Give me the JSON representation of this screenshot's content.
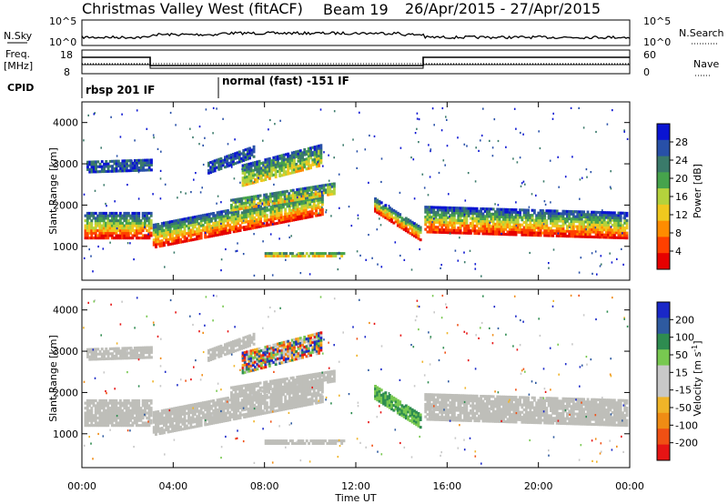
{
  "header": {
    "title_station": "Christmas Valley West (fitACF)",
    "title_beam": "Beam 19",
    "title_dates": "26/Apr/2015 - 27/Apr/2015"
  },
  "top_panels": {
    "nsky_label": "N.Sky",
    "nsky_ticks": [
      "10^5",
      "10^0"
    ],
    "nsearch_label": "N.Search",
    "nsearch_ticks": [
      "10^5",
      "10^0"
    ],
    "freq_label_1": "Freq.",
    "freq_label_2": "[MHz]",
    "freq_ticks": [
      "18",
      "8"
    ],
    "nave_label": "Nave",
    "nave_ticks": [
      "60",
      "0"
    ],
    "cpid_label": "CPID",
    "modes": [
      "rbsp 201 IF",
      "normal (fast) -151 IF"
    ]
  },
  "colors": {
    "power_scale": [
      "#0a14d2",
      "#2850a8",
      "#3a7a6a",
      "#46a34c",
      "#b4d23c",
      "#f0c81e",
      "#ff8c00",
      "#ff4000",
      "#e60000"
    ],
    "velocity_scale": [
      "#1a28c8",
      "#2e5aa0",
      "#2e8c50",
      "#78c850",
      "#c8c8c8",
      "#c8c8c8",
      "#f0b428",
      "#f08c14",
      "#f05014",
      "#e61414"
    ],
    "ground_scatter": "#bebeb9"
  },
  "chart_data": [
    {
      "type": "heatmap",
      "name": "power",
      "ylabel": "Slant Range [km]",
      "xlabel": "Time UT",
      "x_ticks": [
        "00:00",
        "04:00",
        "08:00",
        "12:00",
        "16:00",
        "20:00",
        "00:00"
      ],
      "y_ticks": [
        "1000",
        "2000",
        "3000",
        "4000"
      ],
      "ylim": [
        180,
        4500
      ],
      "colorbar_label": "Power [dB]",
      "colorbar_ticks": [
        "28",
        "24",
        "20",
        "16",
        "12",
        "8",
        "4"
      ],
      "colorbar_range": [
        0,
        30
      ]
    },
    {
      "type": "heatmap",
      "name": "velocity",
      "ylabel": "Slant Range [km]",
      "xlabel": "Time UT",
      "x_ticks": [
        "00:00",
        "04:00",
        "08:00",
        "12:00",
        "16:00",
        "20:00",
        "00:00"
      ],
      "y_ticks": [
        "1000",
        "2000",
        "3000",
        "4000"
      ],
      "ylim": [
        180,
        4500
      ],
      "colorbar_label": "Velocity [m s^-1]",
      "colorbar_ticks": [
        "200",
        "100",
        "50",
        "15",
        "-15",
        "-50",
        "-100",
        "-200"
      ],
      "colorbar_range": [
        -250,
        250
      ]
    }
  ]
}
